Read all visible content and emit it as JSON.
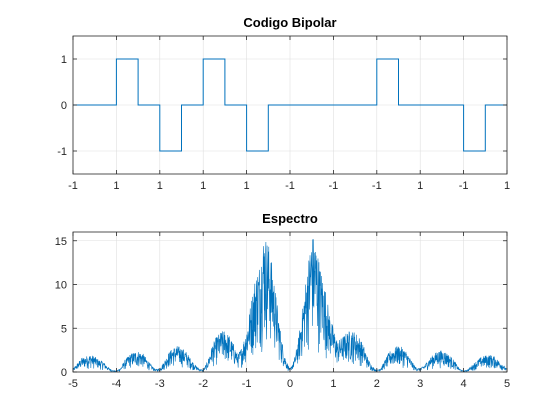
{
  "chart_data": [
    {
      "type": "line",
      "title": "Codigo Bipolar",
      "xlabel": "",
      "ylabel": "",
      "x_range": [
        0,
        10
      ],
      "ylim": [
        -1.5,
        1.5
      ],
      "grid": true,
      "xtick_labels": [
        "-1",
        "1",
        "1",
        "1",
        "1",
        "-1",
        "-1",
        "-1",
        "1",
        "-1",
        "1"
      ],
      "ytick_values": [
        -1,
        0,
        1
      ],
      "ytick_labels": [
        "-1",
        "0",
        "1"
      ],
      "series": [
        {
          "color": "#0072BD",
          "x": [
            0,
            1,
            1,
            1.5,
            1.5,
            2,
            2,
            2.5,
            2.5,
            3,
            3,
            3.5,
            3.5,
            4,
            4,
            4.5,
            4.5,
            5,
            5,
            7,
            7,
            7.5,
            7.5,
            9,
            9,
            9.5,
            9.5,
            10
          ],
          "y": [
            0,
            0,
            1,
            1,
            0,
            0,
            -1,
            -1,
            0,
            0,
            1,
            1,
            0,
            0,
            -1,
            -1,
            0,
            0,
            0,
            0,
            1,
            1,
            0,
            0,
            -1,
            -1,
            0,
            0
          ]
        }
      ]
    },
    {
      "type": "line",
      "title": "Espectro",
      "xlabel": "",
      "ylabel": "",
      "xlim": [
        -5,
        5
      ],
      "ylim": [
        0,
        16
      ],
      "grid": true,
      "xtick_values": [
        -5,
        -4,
        -3,
        -2,
        -1,
        0,
        1,
        2,
        3,
        4,
        5
      ],
      "xtick_labels": [
        "-5",
        "-4",
        "-3",
        "-2",
        "-1",
        "0",
        "1",
        "2",
        "3",
        "4",
        "5"
      ],
      "ytick_values": [
        0,
        5,
        10,
        15
      ],
      "ytick_labels": [
        "0",
        "5",
        "10",
        "15"
      ],
      "series": [
        {
          "color": "#0072BD",
          "envelope_x": [
            -5,
            -4.9,
            -4.8,
            -4.7,
            -4.6,
            -4.5,
            -4.4,
            -4.3,
            -4.2,
            -4.1,
            -4,
            -3.9,
            -3.8,
            -3.7,
            -3.6,
            -3.5,
            -3.4,
            -3.3,
            -3.2,
            -3.1,
            -3,
            -2.9,
            -2.8,
            -2.7,
            -2.6,
            -2.5,
            -2.4,
            -2.3,
            -2.2,
            -2.1,
            -2,
            -1.9,
            -1.8,
            -1.7,
            -1.6,
            -1.5,
            -1.4,
            -1.3,
            -1.2,
            -1.1,
            -1,
            -0.9,
            -0.8,
            -0.7,
            -0.6,
            -0.5,
            -0.4,
            -0.3,
            -0.2,
            -0.1,
            0,
            0.1,
            0.2,
            0.3,
            0.4,
            0.5,
            0.6,
            0.7,
            0.8,
            0.9,
            1,
            1.1,
            1.2,
            1.3,
            1.4,
            1.5,
            1.6,
            1.7,
            1.8,
            1.9,
            2,
            2.1,
            2.2,
            2.3,
            2.4,
            2.5,
            2.6,
            2.7,
            2.8,
            2.9,
            3,
            3.1,
            3.2,
            3.3,
            3.4,
            3.5,
            3.6,
            3.7,
            3.8,
            3.9,
            4,
            4.1,
            4.2,
            4.3,
            4.4,
            4.5,
            4.6,
            4.7,
            4.8,
            4.9,
            5
          ],
          "envelope_y": [
            0.3,
            1.0,
            1.6,
            1.8,
            2.0,
            1.8,
            1.4,
            1.2,
            0.6,
            0.2,
            0.1,
            0.5,
            1.4,
            2.0,
            2.3,
            2.4,
            2.2,
            1.5,
            0.8,
            0.3,
            0.4,
            1.2,
            2.2,
            2.8,
            3.0,
            2.8,
            2.4,
            1.6,
            0.9,
            0.4,
            0.2,
            1.2,
            3.0,
            4.0,
            4.6,
            4.8,
            4.2,
            3.2,
            2.0,
            3.0,
            5.0,
            8.0,
            11.0,
            12.5,
            16.0,
            15.0,
            12.0,
            8.0,
            4.0,
            1.5,
            0.3,
            1.5,
            4.0,
            8.0,
            12.0,
            16.0,
            15.0,
            12.0,
            10.0,
            7.0,
            5.0,
            3.5,
            4.0,
            4.5,
            4.8,
            4.6,
            4.0,
            3.0,
            1.5,
            0.6,
            0.2,
            0.5,
            1.5,
            2.4,
            2.8,
            3.0,
            2.8,
            2.2,
            1.3,
            0.5,
            0.4,
            0.8,
            1.5,
            2.0,
            2.4,
            2.5,
            2.3,
            1.8,
            1.2,
            0.4,
            0.1,
            0.3,
            0.8,
            1.3,
            1.7,
            1.9,
            2.0,
            1.8,
            1.4,
            0.9,
            0.3
          ]
        }
      ]
    }
  ]
}
